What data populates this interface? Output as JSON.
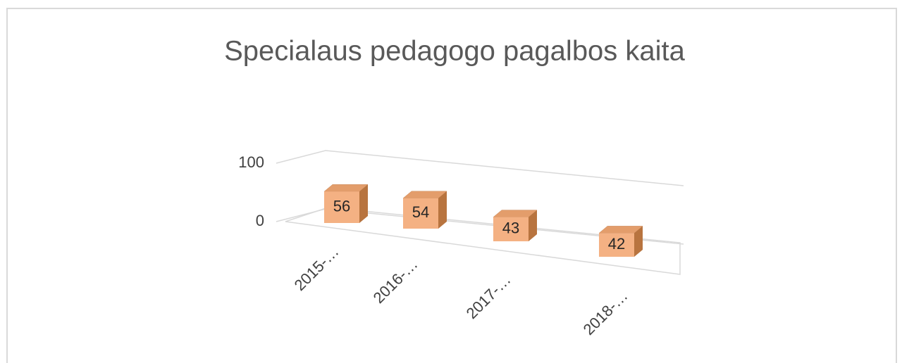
{
  "chart_data": {
    "type": "bar3d",
    "title": "Specialaus pedagogo pagalbos kaita",
    "categories": [
      "2015-…",
      "2016-…",
      "2017-…",
      "2018-…"
    ],
    "values": [
      56,
      54,
      43,
      42
    ],
    "color": "#f4b183",
    "ylim": [
      0,
      100
    ],
    "yticks": [
      0,
      100
    ],
    "grid": true
  }
}
